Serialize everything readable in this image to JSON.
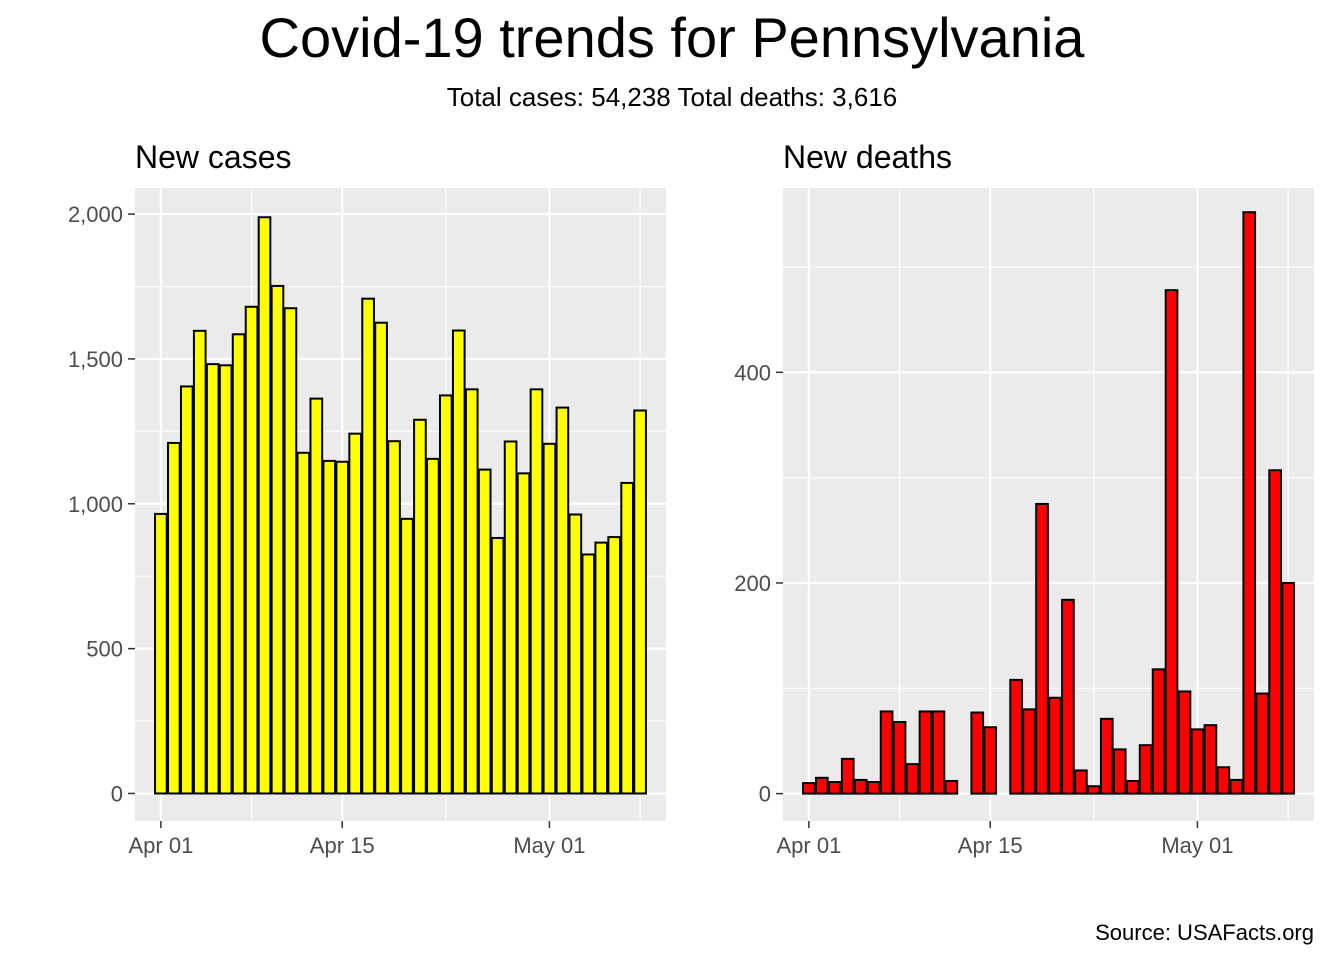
{
  "header": {
    "title": "Covid-19 trends for Pennsylvania",
    "subtitle": "Total cases: 54,238  Total deaths: 3,616"
  },
  "footer": {
    "source": "Source: USAFacts.org"
  },
  "colors": {
    "panel_bg": "#ebebeb",
    "grid": "#ffffff",
    "tick_text": "#4d4d4d",
    "cases_fill": "#ffff00",
    "deaths_fill": "#ff0000",
    "bar_outline": "#000000"
  },
  "chart_data": [
    {
      "type": "bar",
      "title": "New cases",
      "xlabel": "",
      "ylabel": "",
      "x_tick_labels": [
        "Apr 01",
        "Apr 15",
        "May 01"
      ],
      "x_tick_dates": [
        "2020-04-01",
        "2020-04-15",
        "2020-05-01"
      ],
      "y_ticks": [
        0,
        500,
        1000,
        1500,
        2000
      ],
      "y_tick_labels": [
        "0",
        "500",
        "1,000",
        "1,500",
        "2,000"
      ],
      "ylim": [
        -95,
        2090
      ],
      "xlim": [
        "2020-03-30",
        "2020-05-10"
      ],
      "grid": true,
      "fill": "#ffff00",
      "x": [
        "2020-04-01",
        "2020-04-02",
        "2020-04-03",
        "2020-04-04",
        "2020-04-05",
        "2020-04-06",
        "2020-04-07",
        "2020-04-08",
        "2020-04-09",
        "2020-04-10",
        "2020-04-11",
        "2020-04-12",
        "2020-04-13",
        "2020-04-14",
        "2020-04-15",
        "2020-04-16",
        "2020-04-17",
        "2020-04-18",
        "2020-04-19",
        "2020-04-20",
        "2020-04-21",
        "2020-04-22",
        "2020-04-23",
        "2020-04-24",
        "2020-04-25",
        "2020-04-26",
        "2020-04-27",
        "2020-04-28",
        "2020-04-29",
        "2020-04-30",
        "2020-05-01",
        "2020-05-02",
        "2020-05-03",
        "2020-05-04",
        "2020-05-05",
        "2020-05-06",
        "2020-05-07",
        "2020-05-08"
      ],
      "values": [
        965,
        1210,
        1405,
        1597,
        1482,
        1478,
        1585,
        1680,
        1989,
        1752,
        1675,
        1176,
        1363,
        1148,
        1145,
        1242,
        1708,
        1625,
        1216,
        948,
        1290,
        1155,
        1374,
        1598,
        1395,
        1118,
        882,
        1215,
        1105,
        1395,
        1207,
        1332,
        963,
        825,
        866,
        885,
        1072,
        1322
      ]
    },
    {
      "type": "bar",
      "title": "New deaths",
      "xlabel": "",
      "ylabel": "",
      "x_tick_labels": [
        "Apr 01",
        "Apr 15",
        "May 01"
      ],
      "x_tick_dates": [
        "2020-04-01",
        "2020-04-15",
        "2020-05-01"
      ],
      "y_ticks": [
        0,
        200,
        400
      ],
      "y_tick_labels": [
        "0",
        "200",
        "400"
      ],
      "ylim": [
        -26,
        575
      ],
      "xlim": [
        "2020-03-30",
        "2020-05-10"
      ],
      "grid": true,
      "fill": "#ff0000",
      "x": [
        "2020-04-01",
        "2020-04-02",
        "2020-04-03",
        "2020-04-04",
        "2020-04-05",
        "2020-04-06",
        "2020-04-07",
        "2020-04-08",
        "2020-04-09",
        "2020-04-10",
        "2020-04-11",
        "2020-04-12",
        "2020-04-13",
        "2020-04-14",
        "2020-04-15",
        "2020-04-16",
        "2020-04-17",
        "2020-04-18",
        "2020-04-19",
        "2020-04-20",
        "2020-04-21",
        "2020-04-22",
        "2020-04-23",
        "2020-04-24",
        "2020-04-25",
        "2020-04-26",
        "2020-04-27",
        "2020-04-28",
        "2020-04-29",
        "2020-04-30",
        "2020-05-01",
        "2020-05-02",
        "2020-05-03",
        "2020-05-04",
        "2020-05-05",
        "2020-05-06",
        "2020-05-07",
        "2020-05-08"
      ],
      "values": [
        10,
        15,
        11,
        33,
        13,
        11,
        78,
        68,
        28,
        78,
        78,
        12,
        0,
        77,
        63,
        0,
        108,
        80,
        275,
        91,
        184,
        22,
        7,
        71,
        42,
        12,
        46,
        118,
        478,
        97,
        61,
        65,
        25,
        13,
        552,
        95,
        307,
        200
      ]
    }
  ]
}
